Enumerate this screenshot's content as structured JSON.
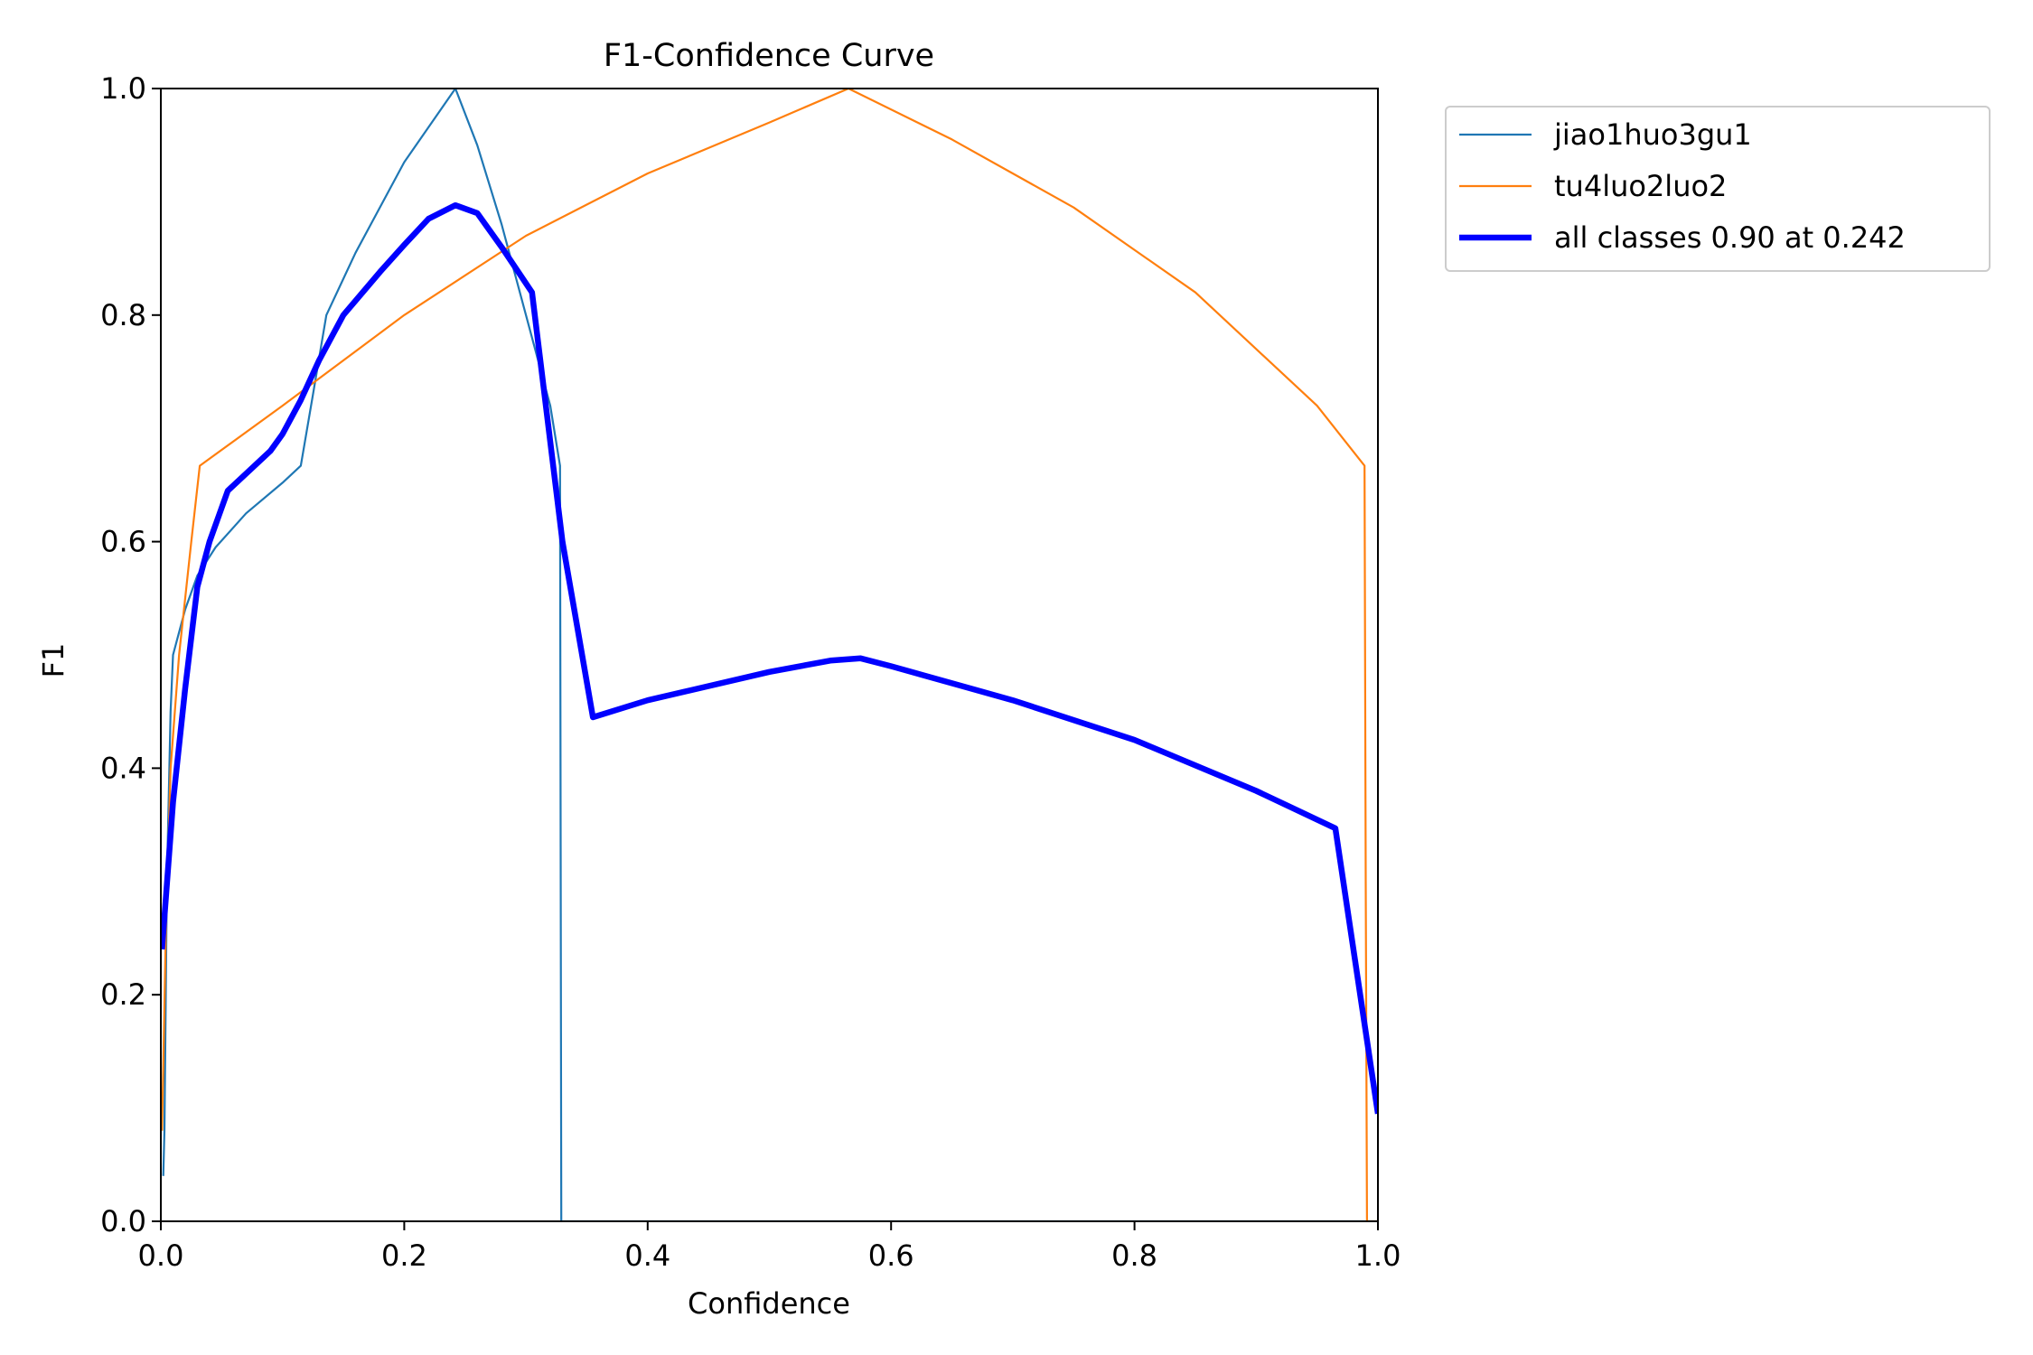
{
  "chart_data": {
    "type": "line",
    "title": "F1-Confidence Curve",
    "xlabel": "Confidence",
    "ylabel": "F1",
    "xlim": [
      0,
      1
    ],
    "ylim": [
      0,
      1
    ],
    "xticks": [
      "0.0",
      "0.2",
      "0.4",
      "0.6",
      "0.8",
      "1.0"
    ],
    "yticks": [
      "0.0",
      "0.2",
      "0.4",
      "0.6",
      "0.8",
      "1.0"
    ],
    "grid": false,
    "legend_position": "outside-top-right",
    "series": [
      {
        "name": "jiao1huo3gu1",
        "color": "#1f77b4",
        "width": "thin",
        "points": [
          [
            0.002,
            0.04
          ],
          [
            0.003,
            0.08
          ],
          [
            0.005,
            0.3
          ],
          [
            0.008,
            0.45
          ],
          [
            0.01,
            0.5
          ],
          [
            0.02,
            0.54
          ],
          [
            0.03,
            0.57
          ],
          [
            0.045,
            0.595
          ],
          [
            0.07,
            0.625
          ],
          [
            0.1,
            0.652
          ],
          [
            0.115,
            0.667
          ],
          [
            0.125,
            0.73
          ],
          [
            0.136,
            0.8
          ],
          [
            0.16,
            0.855
          ],
          [
            0.2,
            0.935
          ],
          [
            0.242,
            1.0
          ],
          [
            0.26,
            0.95
          ],
          [
            0.28,
            0.88
          ],
          [
            0.3,
            0.8
          ],
          [
            0.32,
            0.72
          ],
          [
            0.328,
            0.667
          ],
          [
            0.3285,
            0.33
          ],
          [
            0.329,
            0.0
          ],
          [
            1.0,
            0.0
          ]
        ]
      },
      {
        "name": "tu4luo2luo2",
        "color": "#ff7f0e",
        "width": "thin",
        "points": [
          [
            0.001,
            0.08
          ],
          [
            0.004,
            0.25
          ],
          [
            0.008,
            0.4
          ],
          [
            0.015,
            0.5
          ],
          [
            0.025,
            0.6
          ],
          [
            0.032,
            0.667
          ],
          [
            0.1,
            0.72
          ],
          [
            0.2,
            0.8
          ],
          [
            0.3,
            0.87
          ],
          [
            0.4,
            0.925
          ],
          [
            0.5,
            0.97
          ],
          [
            0.565,
            1.0
          ],
          [
            0.65,
            0.955
          ],
          [
            0.75,
            0.895
          ],
          [
            0.85,
            0.82
          ],
          [
            0.95,
            0.72
          ],
          [
            0.989,
            0.667
          ],
          [
            0.99,
            0.3
          ],
          [
            0.991,
            0.0
          ],
          [
            1.0,
            0.0
          ]
        ]
      },
      {
        "name": "all classes 0.90 at 0.242",
        "color": "#0000ff",
        "width": "thick",
        "points": [
          [
            0.001,
            0.24
          ],
          [
            0.01,
            0.37
          ],
          [
            0.02,
            0.47
          ],
          [
            0.03,
            0.56
          ],
          [
            0.04,
            0.6
          ],
          [
            0.055,
            0.645
          ],
          [
            0.075,
            0.665
          ],
          [
            0.09,
            0.68
          ],
          [
            0.1,
            0.695
          ],
          [
            0.115,
            0.725
          ],
          [
            0.13,
            0.76
          ],
          [
            0.15,
            0.8
          ],
          [
            0.18,
            0.838
          ],
          [
            0.2,
            0.862
          ],
          [
            0.22,
            0.885
          ],
          [
            0.242,
            0.897
          ],
          [
            0.26,
            0.89
          ],
          [
            0.28,
            0.86
          ],
          [
            0.305,
            0.82
          ],
          [
            0.33,
            0.6
          ],
          [
            0.355,
            0.445
          ],
          [
            0.4,
            0.46
          ],
          [
            0.5,
            0.485
          ],
          [
            0.55,
            0.495
          ],
          [
            0.575,
            0.497
          ],
          [
            0.6,
            0.49
          ],
          [
            0.7,
            0.46
          ],
          [
            0.8,
            0.425
          ],
          [
            0.9,
            0.38
          ],
          [
            0.965,
            0.347
          ],
          [
            1.0,
            0.095
          ]
        ]
      }
    ]
  }
}
